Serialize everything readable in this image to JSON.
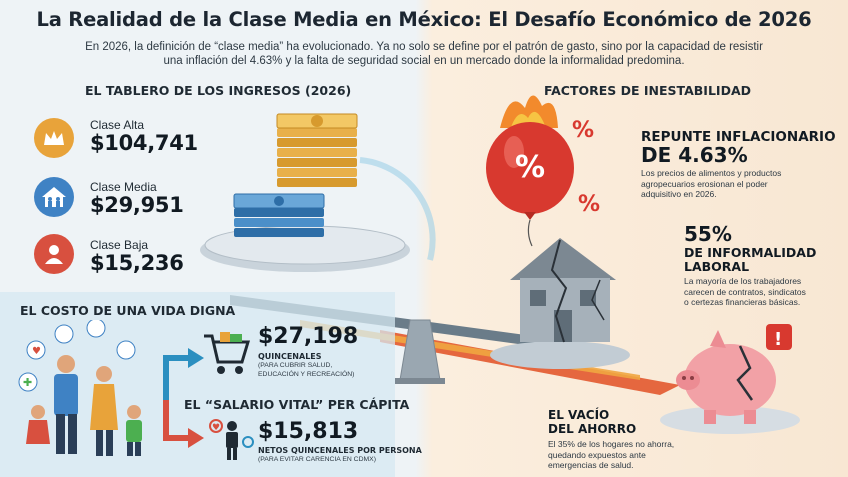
{
  "header": {
    "title": "La Realidad de la Clase Media en México: El Desafío Económico de 2026",
    "subtitle_line1": "En 2026, la definición de “clase media” ha evolucionado. Ya no solo se define por el patrón de gasto, sino por la capacidad de resistir",
    "subtitle_line2": "una inflación del 4.63% y la falta de seguridad social en un mercado donde la informalidad predomina."
  },
  "ingresos": {
    "title": "EL TABLERO DE LOS INGRESOS (2026)",
    "items": [
      {
        "label": "Clase Alta",
        "value": "$104,741",
        "icon": "crown-icon",
        "color": "#e8a33a"
      },
      {
        "label": "Clase Media",
        "value": "$29,951",
        "icon": "family-house-icon",
        "color": "#3f82c4"
      },
      {
        "label": "Clase Baja",
        "value": "$15,236",
        "icon": "person-icon",
        "color": "#d8503f"
      }
    ]
  },
  "vida_digna": {
    "title": "EL COSTO DE UNA VIDA DIGNA",
    "value": "$27,198",
    "caption": "QUINCENALES",
    "note_line1": "(PARA CUBRIR SALUD,",
    "note_line2": "EDUCACIÓN Y RECREACIÓN)"
  },
  "salario_vital": {
    "title": "EL “SALARIO VITAL” PER CÁPITA",
    "value": "$15,813",
    "caption": "NETOS QUINCENALES POR PERSONA",
    "note": "(PARA EVITAR CARENCIA EN CDMX)"
  },
  "factores": {
    "title": "FACTORES DE INESTABILIDAD",
    "inflacion": {
      "head_line1": "REPUNTE INFLACIONARIO",
      "head_line2": "DE 4.63%",
      "body_line1": "Los precios de alimentos y productos",
      "body_line2": "agropecuarios erosionan el poder",
      "body_line3": "adquisitivo en 2026."
    },
    "informalidad": {
      "head_line1": "55%",
      "head_line2": "DE INFORMALIDAD",
      "head_line3": "LABORAL",
      "body_line1": "La mayoría de los trabajadores",
      "body_line2": "carecen de contratos, sindicatos",
      "body_line3": "o certezas financieras básicas."
    },
    "ahorro": {
      "head_line1": "EL VACÍO",
      "head_line2": "DEL AHORRO",
      "body_line1": "El 35% de los hogares no ahorra,",
      "body_line2": "quedando expuestos ante",
      "body_line3": "emergencias de salud."
    },
    "balloon_symbol": "%",
    "floating_symbol": "%"
  },
  "colors": {
    "accent_blue": "#2b8fc0",
    "accent_red": "#d8503f",
    "accent_gold": "#e8a33a"
  }
}
